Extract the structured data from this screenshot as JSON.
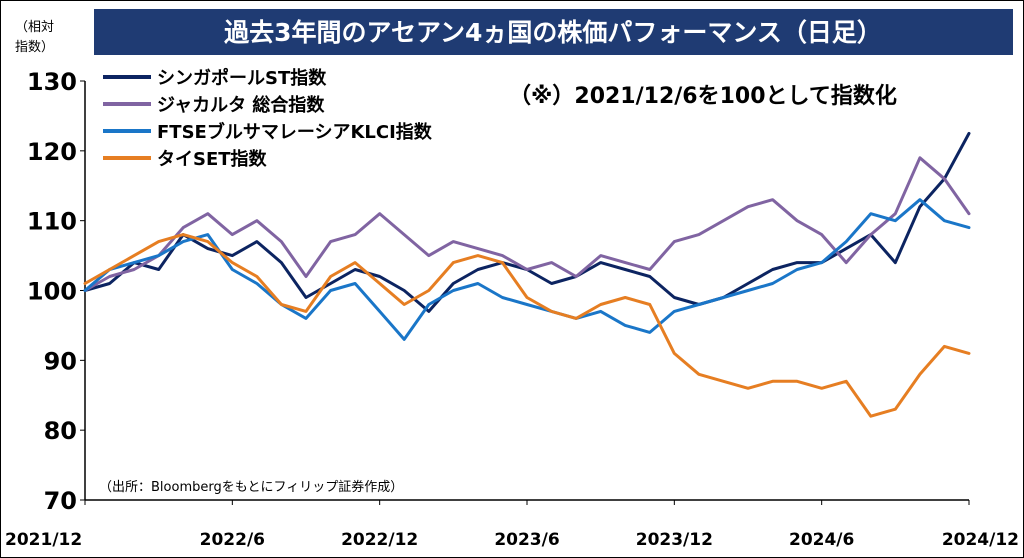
{
  "chart_data": {
    "type": "line",
    "title": "過去3年間のアセアン4ヵ国の株価パフォーマンス（日足）",
    "ylabel": "（相対\n指数）",
    "note": "（※）2021/12/6を100として指数化",
    "source": "（出所：Bloombergをもとにフィリップ証券作成）",
    "ylim": [
      70,
      130
    ],
    "yticks": [
      "130",
      "120",
      "110",
      "100",
      "90",
      "80",
      "70"
    ],
    "xticks": [
      "2021/12",
      "2022/6",
      "2022/12",
      "2023/6",
      "2023/12",
      "2024/6",
      "2024/12"
    ],
    "x_range": [
      "2021/12",
      "2024/12"
    ],
    "grid": false,
    "legend_position": "top-left",
    "x": [
      0,
      1,
      2,
      3,
      4,
      5,
      6,
      7,
      8,
      9,
      10,
      11,
      12,
      13,
      14,
      15,
      16,
      17,
      18,
      19,
      20,
      21,
      22,
      23,
      24,
      25,
      26,
      27,
      28,
      29,
      30,
      31,
      32,
      33,
      34,
      35,
      36
    ],
    "series": [
      {
        "name": "シンガポールST指数",
        "color": "#0c2461",
        "values": [
          100,
          101,
          104,
          103,
          108,
          106,
          105,
          107,
          104,
          99,
          101,
          103,
          102,
          100,
          97,
          101,
          103,
          104,
          103,
          101,
          102,
          104,
          103,
          102,
          99,
          98,
          99,
          101,
          103,
          104,
          104,
          106,
          108,
          104,
          112,
          116,
          122.5
        ]
      },
      {
        "name": "ジャカルタ 総合指数",
        "color": "#8064a2",
        "values": [
          100,
          102,
          103,
          105,
          109,
          111,
          108,
          110,
          107,
          102,
          107,
          108,
          111,
          108,
          105,
          107,
          106,
          105,
          103,
          104,
          102,
          105,
          104,
          103,
          107,
          108,
          110,
          112,
          113,
          110,
          108,
          104,
          108,
          111,
          119,
          116,
          111
        ]
      },
      {
        "name": "FTSEブルサマレーシアKLCI指数",
        "color": "#1a76c8",
        "values": [
          100,
          103,
          104,
          105,
          107,
          108,
          103,
          101,
          98,
          96,
          100,
          101,
          97,
          93,
          98,
          100,
          101,
          99,
          98,
          97,
          96,
          97,
          95,
          94,
          97,
          98,
          99,
          100,
          101,
          103,
          104,
          107,
          111,
          110,
          113,
          110,
          109
        ]
      },
      {
        "name": "タイSET指数",
        "color": "#e67e22",
        "values": [
          101,
          103,
          105,
          107,
          108,
          107,
          104,
          102,
          98,
          97,
          102,
          104,
          101,
          98,
          100,
          104,
          105,
          104,
          99,
          97,
          96,
          98,
          99,
          98,
          91,
          88,
          87,
          86,
          87,
          87,
          86,
          87,
          82,
          83,
          88,
          92,
          91
        ]
      }
    ]
  }
}
